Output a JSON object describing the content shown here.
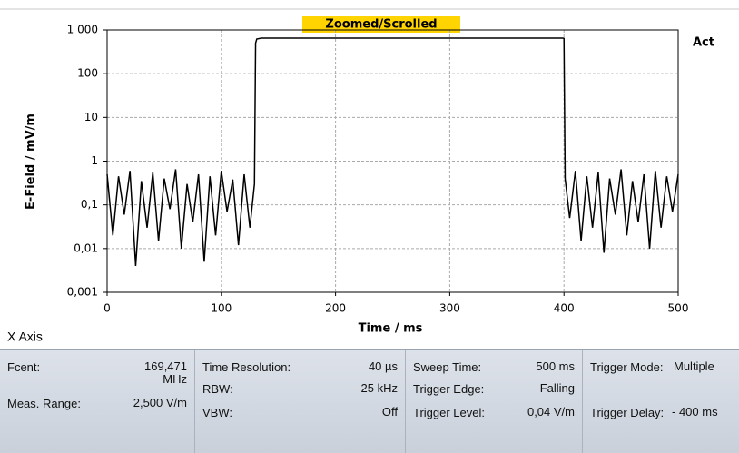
{
  "chart_data": {
    "type": "line",
    "title": "Zoomed/Scrolled",
    "ylabel": "E-Field / mV/m",
    "xlabel": "Time / ms",
    "axis_caption": "X Axis",
    "log_y": true,
    "grid": true,
    "xlim": [
      0,
      500
    ],
    "xticks": [
      0,
      100,
      200,
      300,
      400,
      500
    ],
    "ylim": [
      0.001,
      1000
    ],
    "yticks": [
      {
        "value": 1000,
        "label": "1 000"
      },
      100,
      10,
      1,
      {
        "value": 0.1,
        "label": "0,1"
      },
      {
        "value": 0.01,
        "label": "0,01"
      },
      {
        "value": 0.001,
        "label": "0,001"
      }
    ],
    "x": [
      0,
      5,
      10,
      15,
      20,
      25,
      30,
      35,
      40,
      45,
      50,
      55,
      60,
      65,
      70,
      75,
      80,
      85,
      90,
      95,
      100,
      105,
      110,
      115,
      120,
      125,
      129,
      130,
      131,
      135,
      200,
      300,
      399,
      400,
      401,
      405,
      410,
      415,
      420,
      425,
      430,
      435,
      440,
      445,
      450,
      455,
      460,
      465,
      470,
      475,
      480,
      485,
      490,
      495,
      500
    ],
    "series": [
      {
        "name": "Act",
        "color": "#000000",
        "values": [
          0.5,
          0.02,
          0.45,
          0.06,
          0.6,
          0.004,
          0.35,
          0.03,
          0.55,
          0.015,
          0.4,
          0.08,
          0.65,
          0.01,
          0.3,
          0.04,
          0.5,
          0.005,
          0.45,
          0.02,
          0.6,
          0.07,
          0.38,
          0.012,
          0.5,
          0.03,
          0.3,
          500,
          620,
          650,
          650,
          650,
          650,
          640,
          0.4,
          0.05,
          0.6,
          0.015,
          0.45,
          0.03,
          0.55,
          0.008,
          0.4,
          0.06,
          0.65,
          0.02,
          0.35,
          0.04,
          0.5,
          0.01,
          0.6,
          0.03,
          0.45,
          0.07,
          0.5
        ]
      }
    ]
  },
  "panel": {
    "columns": [
      {
        "items": [
          {
            "label": "Fcent:",
            "value": "169,471 MHz"
          },
          {
            "label": "Meas. Range:",
            "value": "2,500 V/m"
          }
        ]
      },
      {
        "items": [
          {
            "label": "Time Resolution:",
            "value": "40 µs"
          },
          {
            "label": "RBW:",
            "value": "25 kHz"
          },
          {
            "label": "VBW:",
            "value": "Off"
          }
        ]
      },
      {
        "items": [
          {
            "label": "Sweep Time:",
            "value": "500 ms"
          },
          {
            "label": "Trigger Edge:",
            "value": "Falling"
          },
          {
            "label": "Trigger Level:",
            "value": "0,04 V/m"
          }
        ]
      },
      {
        "items": [
          {
            "label": "Trigger Mode:",
            "value": "Multiple"
          },
          {
            "label": "Trigger Delay:",
            "value": "- 400 ms"
          }
        ]
      }
    ]
  }
}
